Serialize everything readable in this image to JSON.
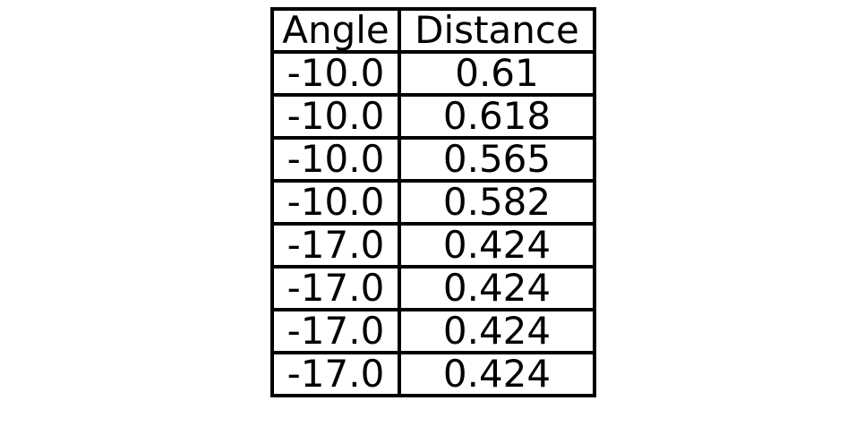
{
  "chart_data": {
    "type": "table",
    "columns": [
      "Angle",
      "Distance"
    ],
    "rows": [
      [
        "-10.0",
        "0.61"
      ],
      [
        "-10.0",
        "0.618"
      ],
      [
        "-10.0",
        "0.565"
      ],
      [
        "-10.0",
        "0.582"
      ],
      [
        "-17.0",
        "0.424"
      ],
      [
        "-17.0",
        "0.424"
      ],
      [
        "-17.0",
        "0.424"
      ],
      [
        "-17.0",
        "0.424"
      ]
    ]
  }
}
